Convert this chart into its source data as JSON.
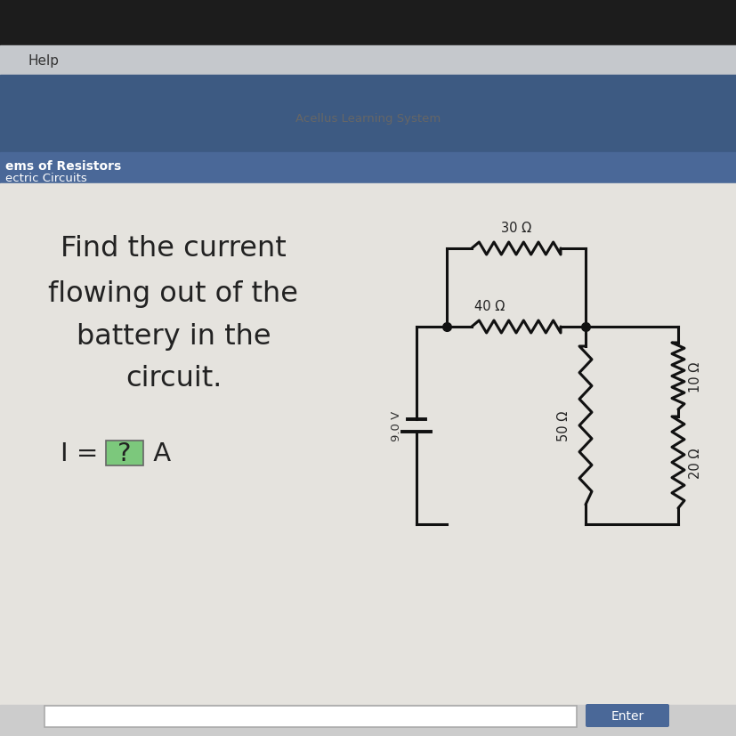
{
  "bg_top_dark": "#1c1c1c",
  "bg_menu_bar": "#c5c8cc",
  "bg_blue_banner": "#3d5a82",
  "bg_blue_section": "#4a6898",
  "bg_content": "#e5e3de",
  "bg_bottom_bar": "#cccccc",
  "menu_text": "Help",
  "acellus_text": "Acellus Learning System",
  "section_title1": "ems of Resistors",
  "section_title2": "ectric Circuits",
  "main_text_line1": "Find the current",
  "main_text_line2": "flowing out of the",
  "main_text_line3": "battery in the",
  "main_text_line4": "circuit.",
  "formula_prefix": "I = ",
  "formula_box": "?",
  "formula_suffix": " A",
  "enter_button_text": "Enter",
  "enter_button_color": "#4a6898",
  "voltage_label": "9.0 V",
  "r1_label": "30 Ω",
  "r2_label": "40 Ω",
  "r3_label": "50 Ω",
  "r4_label": "20 Ω",
  "r5_label": "10 Ω",
  "wire_color": "#111111",
  "text_color": "#222222",
  "node_dot_color": "#111111"
}
